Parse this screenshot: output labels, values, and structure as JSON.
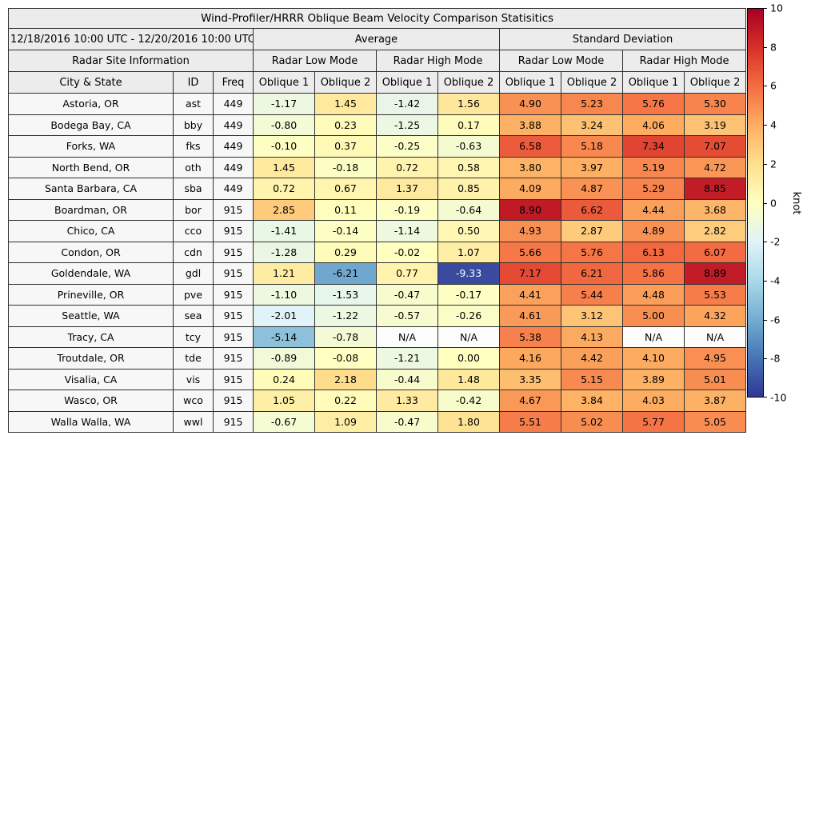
{
  "title": "Wind-Profiler/HRRR Oblique Beam Velocity Comparison Statisitics",
  "header": {
    "date_range": "12/18/2016 10:00 UTC - 12/20/2016 10:00 UTC",
    "group_average": "Average",
    "group_stddev": "Standard Deviation",
    "site_info": "Radar Site Information",
    "low_mode": "Radar Low Mode",
    "high_mode": "Radar High Mode",
    "columns": [
      "City & State",
      "ID",
      "Freq",
      "Oblique 1",
      "Oblique 2",
      "Oblique 1",
      "Oblique 2",
      "Oblique 1",
      "Oblique 2",
      "Oblique 1",
      "Oblique 2"
    ]
  },
  "colorbar": {
    "label": "knot",
    "min": -10,
    "max": 10,
    "ticks": [
      10,
      8,
      6,
      4,
      2,
      0,
      -2,
      -4,
      -6,
      -8,
      -10
    ],
    "colormap_stops": [
      "#313695",
      "#4575b4",
      "#74add1",
      "#abd9e9",
      "#e0f3f8",
      "#ffffbf",
      "#fee090",
      "#fdae61",
      "#f46d43",
      "#d73027",
      "#a50026"
    ]
  },
  "chart_data": {
    "type": "heatmap",
    "title": "Wind-Profiler/HRRR Oblique Beam Velocity Comparison Statisitics",
    "unit": "knot",
    "value_range": [
      -10,
      10
    ],
    "na_label": "N/A",
    "value_columns": [
      "Average / Radar Low Mode / Oblique 1",
      "Average / Radar Low Mode / Oblique 2",
      "Average / Radar High Mode / Oblique 1",
      "Average / Radar High Mode / Oblique 2",
      "Standard Deviation / Radar Low Mode / Oblique 1",
      "Standard Deviation / Radar Low Mode / Oblique 2",
      "Standard Deviation / Radar High Mode / Oblique 1",
      "Standard Deviation / Radar High Mode / Oblique 2"
    ],
    "rows": [
      {
        "city": "Astoria, OR",
        "id": "ast",
        "freq": "449",
        "values": [
          -1.17,
          1.45,
          -1.42,
          1.56,
          4.9,
          5.23,
          5.76,
          5.3
        ]
      },
      {
        "city": "Bodega Bay, CA",
        "id": "bby",
        "freq": "449",
        "values": [
          -0.8,
          0.23,
          -1.25,
          0.17,
          3.88,
          3.24,
          4.06,
          3.19
        ]
      },
      {
        "city": "Forks, WA",
        "id": "fks",
        "freq": "449",
        "values": [
          -0.1,
          0.37,
          -0.25,
          -0.63,
          6.58,
          5.18,
          7.34,
          7.07
        ]
      },
      {
        "city": "North Bend, OR",
        "id": "oth",
        "freq": "449",
        "values": [
          1.45,
          -0.18,
          0.72,
          0.58,
          3.8,
          3.97,
          5.19,
          4.72
        ]
      },
      {
        "city": "Santa Barbara, CA",
        "id": "sba",
        "freq": "449",
        "values": [
          0.72,
          0.67,
          1.37,
          0.85,
          4.09,
          4.87,
          5.29,
          8.85
        ]
      },
      {
        "city": "Boardman, OR",
        "id": "bor",
        "freq": "915",
        "values": [
          2.85,
          0.11,
          -0.19,
          -0.64,
          8.9,
          6.62,
          4.44,
          3.68
        ]
      },
      {
        "city": "Chico, CA",
        "id": "cco",
        "freq": "915",
        "values": [
          -1.41,
          -0.14,
          -1.14,
          0.5,
          4.93,
          2.87,
          4.89,
          2.82
        ]
      },
      {
        "city": "Condon, OR",
        "id": "cdn",
        "freq": "915",
        "values": [
          -1.28,
          0.29,
          -0.02,
          1.07,
          5.66,
          5.76,
          6.13,
          6.07
        ]
      },
      {
        "city": "Goldendale, WA",
        "id": "gdl",
        "freq": "915",
        "values": [
          1.21,
          -6.21,
          0.77,
          -9.33,
          7.17,
          6.21,
          5.86,
          8.89
        ]
      },
      {
        "city": "Prineville, OR",
        "id": "pve",
        "freq": "915",
        "values": [
          -1.1,
          -1.53,
          -0.47,
          -0.17,
          4.41,
          5.44,
          4.48,
          5.53
        ]
      },
      {
        "city": "Seattle, WA",
        "id": "sea",
        "freq": "915",
        "values": [
          -2.01,
          -1.22,
          -0.57,
          -0.26,
          4.61,
          3.12,
          5.0,
          4.32
        ]
      },
      {
        "city": "Tracy, CA",
        "id": "tcy",
        "freq": "915",
        "values": [
          -5.14,
          -0.78,
          null,
          null,
          5.38,
          4.13,
          null,
          null
        ]
      },
      {
        "city": "Troutdale, OR",
        "id": "tde",
        "freq": "915",
        "values": [
          -0.89,
          -0.08,
          -1.21,
          0.0,
          4.16,
          4.42,
          4.1,
          4.95
        ]
      },
      {
        "city": "Visalia, CA",
        "id": "vis",
        "freq": "915",
        "values": [
          0.24,
          2.18,
          -0.44,
          1.48,
          3.35,
          5.15,
          3.89,
          5.01
        ]
      },
      {
        "city": "Wasco, OR",
        "id": "wco",
        "freq": "915",
        "values": [
          1.05,
          0.22,
          1.33,
          -0.42,
          4.67,
          3.84,
          4.03,
          3.87
        ]
      },
      {
        "city": "Walla Walla, WA",
        "id": "wwl",
        "freq": "915",
        "values": [
          -0.67,
          1.09,
          -0.47,
          1.8,
          5.51,
          5.02,
          5.77,
          5.05
        ]
      }
    ]
  }
}
